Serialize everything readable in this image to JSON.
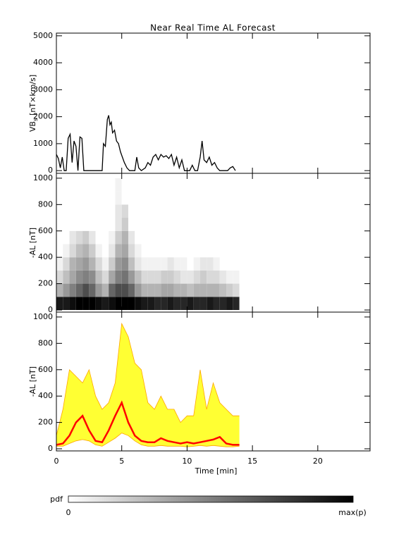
{
  "chart_data": [
    {
      "type": "line",
      "title": "Near Real Time AL Forecast",
      "ylabel": "VB",
      "ylabel_sub": "s",
      "ylabel_unit": "[nT×km/s]",
      "xlim": [
        0,
        24
      ],
      "xticks": [
        0,
        5,
        10,
        15,
        20
      ],
      "show_xtick_labels": false,
      "ylim": [
        -100,
        5100
      ],
      "yticks": [
        0,
        1000,
        2000,
        3000,
        4000,
        5000
      ],
      "color": "#000000",
      "x": [
        0,
        0.15,
        0.3,
        0.45,
        0.6,
        0.75,
        0.9,
        1.05,
        1.2,
        1.35,
        1.5,
        1.65,
        1.8,
        1.95,
        2.1,
        2.25,
        2.4,
        2.55,
        3.5,
        3.6,
        3.75,
        3.9,
        4.0,
        4.1,
        4.2,
        4.3,
        4.45,
        4.6,
        4.75,
        4.9,
        5.05,
        5.2,
        5.4,
        5.6,
        5.8,
        6.0,
        6.15,
        6.3,
        6.5,
        6.8,
        7.0,
        7.2,
        7.4,
        7.6,
        7.8,
        8.0,
        8.2,
        8.4,
        8.6,
        8.8,
        9.0,
        9.2,
        9.4,
        9.6,
        9.8,
        10.0,
        10.2,
        10.4,
        10.6,
        10.8,
        11.0,
        11.15,
        11.3,
        11.5,
        11.7,
        11.9,
        12.1,
        12.3,
        12.5,
        12.7,
        12.9,
        13.1,
        13.3,
        13.5,
        13.7
      ],
      "values": [
        600,
        450,
        100,
        500,
        0,
        0,
        1200,
        1350,
        300,
        1100,
        900,
        0,
        1250,
        1200,
        0,
        0,
        0,
        0,
        0,
        1000,
        900,
        1900,
        2050,
        1700,
        1800,
        1400,
        1500,
        1100,
        1000,
        700,
        500,
        300,
        100,
        0,
        0,
        0,
        500,
        100,
        0,
        100,
        300,
        200,
        500,
        600,
        400,
        600,
        500,
        550,
        450,
        600,
        200,
        500,
        100,
        400,
        0,
        0,
        0,
        200,
        0,
        0,
        500,
        1100,
        400,
        300,
        500,
        200,
        300,
        100,
        0,
        0,
        0,
        0,
        100,
        150,
        0
      ]
    },
    {
      "type": "heatmap",
      "ylabel": "-AL [nT]",
      "xlim": [
        0,
        24
      ],
      "xticks": [
        0,
        5,
        10,
        15,
        20
      ],
      "show_xtick_labels": false,
      "ylim": [
        -16,
        1037
      ],
      "yticks": [
        0,
        200,
        400,
        600,
        800,
        1000
      ],
      "x_edges": [
        0,
        0.5,
        1,
        1.5,
        2,
        2.5,
        3,
        3.5,
        4,
        4.5,
        5,
        5.5,
        6,
        6.5,
        7,
        7.5,
        8,
        8.5,
        9,
        9.5,
        10,
        10.5,
        11,
        11.5,
        12,
        12.5,
        13,
        13.5,
        14
      ],
      "y_edges": [
        0,
        100,
        200,
        300,
        400,
        500,
        600,
        700,
        800,
        900,
        1000
      ],
      "z": [
        [
          0.9,
          0.9,
          0.95,
          1,
          1,
          1,
          0.95,
          0.9,
          0.95,
          1,
          1,
          1,
          0.95,
          0.9,
          0.9,
          0.85,
          0.85,
          0.9,
          0.85,
          0.85,
          0.9,
          0.85,
          0.85,
          0.9,
          0.85,
          0.85,
          0.9,
          0.85
        ],
        [
          0.3,
          0.4,
          0.5,
          0.6,
          0.7,
          0.6,
          0.4,
          0.3,
          0.6,
          0.7,
          0.7,
          0.6,
          0.4,
          0.3,
          0.3,
          0.3,
          0.35,
          0.35,
          0.3,
          0.3,
          0.25,
          0.3,
          0.3,
          0.3,
          0.3,
          0.25,
          0.2,
          0.15
        ],
        [
          0.15,
          0.25,
          0.35,
          0.45,
          0.5,
          0.45,
          0.25,
          0.15,
          0.35,
          0.5,
          0.55,
          0.4,
          0.25,
          0.15,
          0.15,
          0.15,
          0.2,
          0.2,
          0.15,
          0.1,
          0.1,
          0.15,
          0.2,
          0.15,
          0.15,
          0.1,
          0.05,
          0.05
        ],
        [
          0.05,
          0.15,
          0.3,
          0.35,
          0.4,
          0.3,
          0.15,
          0.05,
          0.2,
          0.4,
          0.45,
          0.25,
          0.1,
          0.05,
          0.05,
          0.05,
          0.05,
          0.1,
          0.05,
          0.05,
          0,
          0.05,
          0.1,
          0.1,
          0.05,
          0,
          0,
          0
        ],
        [
          0,
          0.05,
          0.15,
          0.25,
          0.3,
          0.2,
          0.05,
          0,
          0.1,
          0.3,
          0.35,
          0.15,
          0.05,
          0,
          0,
          0,
          0,
          0,
          0,
          0,
          0,
          0,
          0,
          0,
          0,
          0,
          0,
          0
        ],
        [
          0,
          0,
          0.1,
          0.15,
          0.2,
          0.1,
          0,
          0,
          0.05,
          0.2,
          0.3,
          0.1,
          0,
          0,
          0,
          0,
          0,
          0,
          0,
          0,
          0,
          0,
          0,
          0,
          0,
          0,
          0,
          0
        ],
        [
          0,
          0,
          0,
          0,
          0,
          0,
          0,
          0,
          0,
          0.1,
          0.2,
          0,
          0,
          0,
          0,
          0,
          0,
          0,
          0,
          0,
          0,
          0,
          0,
          0,
          0,
          0,
          0,
          0
        ],
        [
          0,
          0,
          0,
          0,
          0,
          0,
          0,
          0,
          0,
          0.1,
          0.15,
          0,
          0,
          0,
          0,
          0,
          0,
          0,
          0,
          0,
          0,
          0,
          0,
          0,
          0,
          0,
          0,
          0
        ],
        [
          0,
          0,
          0,
          0,
          0,
          0,
          0,
          0,
          0,
          0.05,
          0,
          0,
          0,
          0,
          0,
          0,
          0,
          0,
          0,
          0,
          0,
          0,
          0,
          0,
          0,
          0,
          0,
          0
        ],
        [
          0,
          0,
          0,
          0,
          0,
          0,
          0,
          0,
          0,
          0.05,
          0,
          0,
          0,
          0,
          0,
          0,
          0,
          0,
          0,
          0,
          0,
          0,
          0,
          0,
          0,
          0,
          0,
          0
        ]
      ],
      "colorbar": {
        "label": "pdf",
        "min_label": "0",
        "max_label": "max(p)"
      }
    },
    {
      "type": "band",
      "ylabel": "-AL [nT]",
      "xlabel": "Time [min]",
      "xlim": [
        0,
        24
      ],
      "xticks": [
        0,
        5,
        10,
        15,
        20
      ],
      "show_xtick_labels": true,
      "ylim": [
        -16,
        1037
      ],
      "yticks": [
        0,
        200,
        400,
        600,
        800,
        1000
      ],
      "fill_color": "#ffff33",
      "edge_color": "#ffa500",
      "median_color": "#ff0000",
      "x": [
        0,
        0.5,
        1,
        1.5,
        2,
        2.5,
        3,
        3.5,
        4,
        4.5,
        5,
        5.5,
        6,
        6.5,
        7,
        7.5,
        8,
        8.5,
        9,
        9.5,
        10,
        10.5,
        11,
        11.5,
        12,
        12.5,
        13,
        13.5,
        14
      ],
      "upper": [
        100,
        300,
        600,
        550,
        500,
        600,
        400,
        300,
        350,
        500,
        950,
        850,
        650,
        600,
        350,
        300,
        400,
        300,
        300,
        200,
        250,
        250,
        600,
        300,
        500,
        350,
        300,
        250,
        250
      ],
      "lower": [
        20,
        20,
        40,
        60,
        70,
        60,
        30,
        20,
        50,
        80,
        120,
        100,
        60,
        30,
        20,
        20,
        25,
        20,
        20,
        20,
        15,
        20,
        25,
        20,
        25,
        20,
        15,
        15,
        20
      ],
      "median": [
        30,
        40,
        100,
        200,
        250,
        140,
        60,
        50,
        140,
        250,
        350,
        200,
        100,
        60,
        50,
        50,
        80,
        60,
        50,
        40,
        50,
        40,
        50,
        60,
        70,
        90,
        40,
        30,
        30
      ]
    }
  ]
}
